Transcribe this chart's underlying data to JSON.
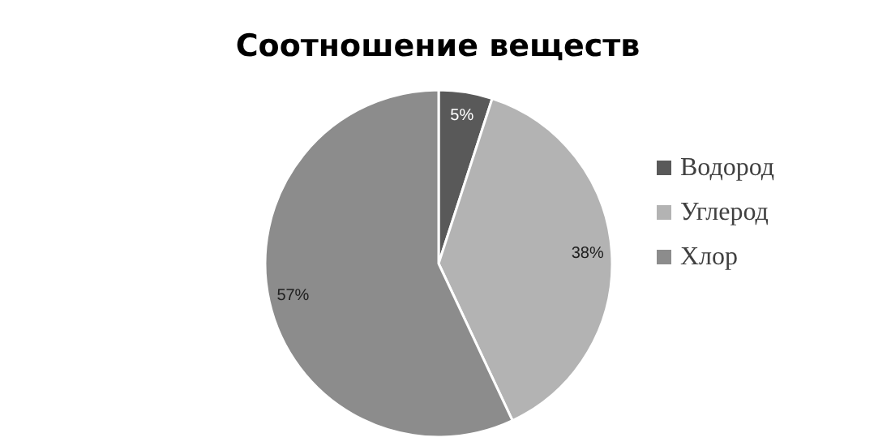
{
  "chart_data": {
    "type": "pie",
    "title": "Соотношение веществ",
    "categories": [
      "Водород",
      "Углерод",
      "Хлор"
    ],
    "values": [
      5,
      38,
      57
    ],
    "colors": [
      "#595959",
      "#b3b3b3",
      "#8c8c8c"
    ],
    "value_labels": [
      "5%",
      "38%",
      "57%"
    ],
    "legend": "right"
  }
}
